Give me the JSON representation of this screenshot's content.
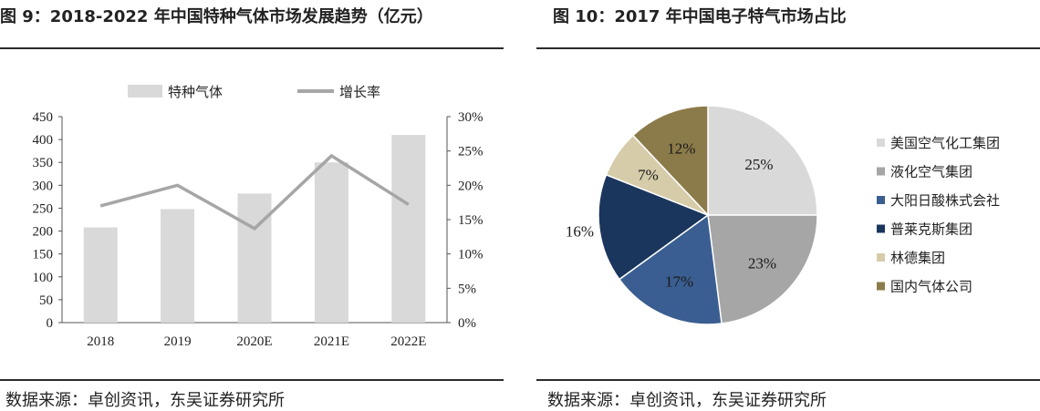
{
  "left_panel": {
    "title": "图 9：2018-2022 年中国特种气体市场发展趋势（亿元）",
    "source": "数据来源：卓创资讯，东吴证券研究所"
  },
  "right_panel": {
    "title": "图 10：2017 年中国电子特气市场占比",
    "source": "数据来源：卓创资讯，东吴证券研究所"
  },
  "colors": {
    "bar": "#d9d9d9",
    "line": "#a6a6a6",
    "pie": [
      "#d9d9d9",
      "#a6a6a6",
      "#3a5e91",
      "#1b365d",
      "#d6ccaa",
      "#8c7b4a"
    ]
  },
  "chart_data": [
    {
      "type": "bar",
      "categories": [
        "2018",
        "2019",
        "2020E",
        "2021E",
        "2022E"
      ],
      "series": [
        {
          "name": "特种气体",
          "type": "bar",
          "axis": "left",
          "values": [
            208,
            248,
            282,
            350,
            410
          ]
        },
        {
          "name": "增长率",
          "type": "line",
          "axis": "right",
          "values": [
            0.17,
            0.2,
            0.137,
            0.243,
            0.172
          ]
        }
      ],
      "yticks_left": [
        "0",
        "50",
        "100",
        "150",
        "200",
        "250",
        "300",
        "350",
        "400",
        "450"
      ],
      "yticks_right": [
        "0%",
        "5%",
        "10%",
        "15%",
        "20%",
        "25%",
        "30%"
      ],
      "ylim_left": [
        0,
        450
      ],
      "ylim_right": [
        0,
        0.3
      ],
      "legend_position": "top",
      "grid": false
    },
    {
      "type": "pie",
      "labels": [
        "美国空气化工集团",
        "液化空气集团",
        "大阳日酸株式会社",
        "普莱克斯集团",
        "林德集团",
        "国内气体公司"
      ],
      "values": [
        25,
        23,
        17,
        16,
        7,
        12
      ],
      "value_labels": [
        "25%",
        "23%",
        "17%",
        "16%",
        "7%",
        "12%"
      ],
      "legend_position": "right"
    }
  ]
}
